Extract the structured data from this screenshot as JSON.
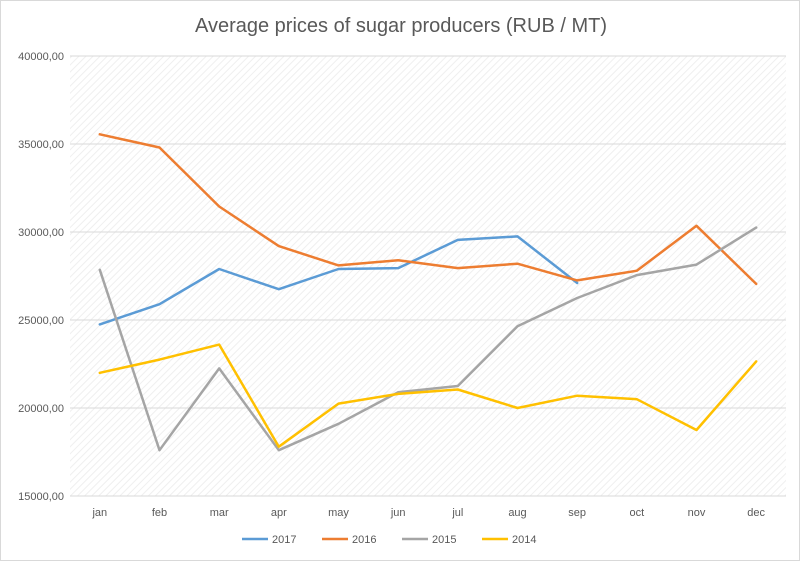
{
  "chart_data": {
    "type": "line",
    "title": "Average prices of sugar producers (RUB / MT)",
    "xlabel": "",
    "ylabel": "",
    "categories": [
      "jan",
      "feb",
      "mar",
      "apr",
      "may",
      "jun",
      "jul",
      "aug",
      "sep",
      "oct",
      "nov",
      "dec"
    ],
    "ylim": [
      15000,
      40000
    ],
    "yticks": [
      15000,
      20000,
      25000,
      30000,
      35000,
      40000
    ],
    "ytick_labels": [
      "15000,00",
      "20000,00",
      "25000,00",
      "30000,00",
      "35000,00",
      "40000,00"
    ],
    "grid": true,
    "legend_position": "bottom",
    "series": [
      {
        "name": "2017",
        "color": "#5b9bd5",
        "values": [
          24750,
          25900,
          27900,
          26750,
          27900,
          27950,
          29550,
          29750,
          27100,
          null,
          null,
          null
        ]
      },
      {
        "name": "2016",
        "color": "#ed7d31",
        "values": [
          35550,
          34800,
          31450,
          29200,
          28100,
          28400,
          27950,
          28200,
          27250,
          27800,
          30350,
          27050
        ]
      },
      {
        "name": "2015",
        "color": "#a5a5a5",
        "values": [
          27850,
          17600,
          22250,
          17600,
          19100,
          20900,
          21250,
          24650,
          26250,
          27550,
          28150,
          30250
        ]
      },
      {
        "name": "2014",
        "color": "#ffc000",
        "values": [
          22000,
          22750,
          23600,
          17800,
          20250,
          20800,
          21050,
          20000,
          20700,
          20500,
          18750,
          22650
        ]
      }
    ]
  }
}
